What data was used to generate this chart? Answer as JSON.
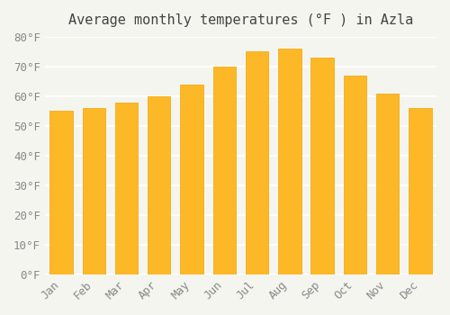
{
  "title": "Average monthly temperatures (°F ) in Azla",
  "months": [
    "Jan",
    "Feb",
    "Mar",
    "Apr",
    "May",
    "Jun",
    "Jul",
    "Aug",
    "Sep",
    "Oct",
    "Nov",
    "Dec"
  ],
  "values": [
    55,
    56,
    58,
    60,
    64,
    70,
    75,
    76,
    73,
    67,
    61,
    56
  ],
  "bar_color_face": "#FDB827",
  "bar_color_edge": "#F0A500",
  "background_color": "#F5F5F0",
  "plot_bg_color": "#F5F5F0",
  "ylim": [
    0,
    80
  ],
  "yticks": [
    0,
    10,
    20,
    30,
    40,
    50,
    60,
    70,
    80
  ],
  "ytick_labels": [
    "0°F",
    "10°F",
    "20°F",
    "30°F",
    "40°F",
    "50°F",
    "60°F",
    "70°F",
    "80°F"
  ],
  "grid_color": "#FFFFFF",
  "title_fontsize": 11,
  "tick_fontsize": 9,
  "tick_color": "#888888",
  "font_family": "monospace"
}
